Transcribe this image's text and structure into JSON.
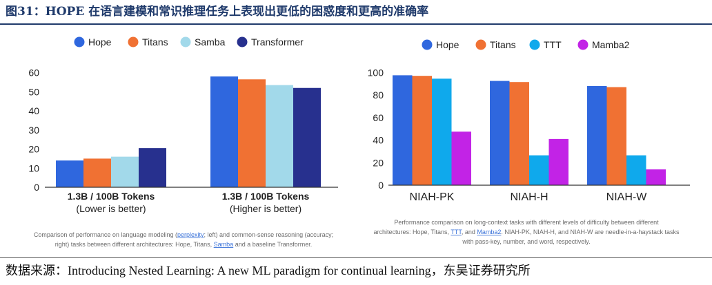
{
  "figure_title": "图31：HOPE 在语言建模和常识推理任务上表现出更低的困惑度和更高的准确率",
  "source": "数据来源：Introducing Nested Learning: A new ML paradigm for continual learning，东吴证券研究所",
  "left_panel": {
    "caption_lines": [
      [
        "Comparison of performance on language modeling (",
        {
          "link": "perplexity"
        },
        "; left) and common-sense reasoning (accuracy;"
      ],
      [
        "right) tasks between different architectures: Hope, Titans, ",
        {
          "link": "Samba"
        },
        " and a baseline Transformer."
      ]
    ]
  },
  "right_panel": {
    "caption_lines": [
      [
        "Performance comparison on long-context tasks with different levels of difficulty between different"
      ],
      [
        "architectures: Hope, Titans, ",
        {
          "link": "TTT"
        },
        ", and ",
        {
          "link": "Mamba2"
        },
        ". NIAH-PK, NIAH-H, and NIAH-W are needle-in-a-haystack tasks"
      ],
      [
        "with pass-key, number, and word, respectively."
      ]
    ]
  },
  "chart_data": [
    {
      "type": "bar",
      "title": "",
      "legend_position": "top",
      "categories": [
        [
          "1.3B / 100B Tokens",
          "(Lower is better)"
        ],
        [
          "1.3B / 100B Tokens",
          "(Higher is better)"
        ]
      ],
      "y_ticks": [
        0,
        10,
        20,
        30,
        40,
        50,
        60
      ],
      "ylim": [
        0,
        62
      ],
      "grid": false,
      "series": [
        {
          "name": "Hope",
          "color": "#2f67de",
          "values": [
            14,
            58
          ]
        },
        {
          "name": "Titans",
          "color": "#f07133",
          "values": [
            15,
            56.5
          ]
        },
        {
          "name": "Samba",
          "color": "#a2d9ea",
          "values": [
            16,
            53.5
          ]
        },
        {
          "name": "Transformer",
          "color": "#27308e",
          "values": [
            20.5,
            52
          ]
        }
      ]
    },
    {
      "type": "bar",
      "title": "",
      "legend_position": "top",
      "categories": [
        "NIAH-PK",
        "NIAH-H",
        "NIAH-W"
      ],
      "y_ticks": [
        0,
        20,
        40,
        60,
        80,
        100
      ],
      "ylim": [
        0,
        102
      ],
      "grid": false,
      "series": [
        {
          "name": "Hope",
          "color": "#2f67de",
          "values": [
            97.5,
            92.5,
            88
          ]
        },
        {
          "name": "Titans",
          "color": "#f07133",
          "values": [
            97,
            91.5,
            87
          ]
        },
        {
          "name": "TTT",
          "color": "#0fa9ec",
          "values": [
            94.5,
            26.5,
            26.5
          ]
        },
        {
          "name": "Mamba2",
          "color": "#c223e6",
          "values": [
            47.5,
            41,
            14
          ]
        }
      ]
    }
  ]
}
